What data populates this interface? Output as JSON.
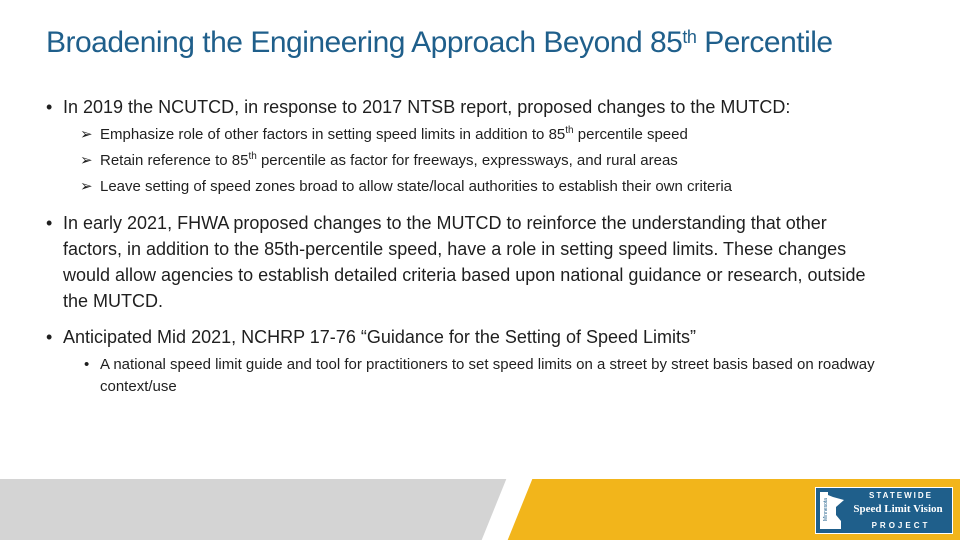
{
  "title": {
    "main": "Broadening the Engineering Approach Beyond 85",
    "sup": "th",
    "end": " Percentile"
  },
  "bullets": [
    {
      "text": "In 2019 the NCUTCD, in response to 2017 NTSB report, proposed changes to the MUTCD:",
      "subs": [
        {
          "pre": "Emphasize role of other factors in setting speed limits in addition to 85",
          "sup": "th",
          "post": " percentile speed"
        },
        {
          "pre": "Retain reference to 85",
          "sup": "th",
          "post": " percentile as factor for freeways, expressways, and rural areas"
        },
        {
          "pre": "Leave setting of speed zones broad to allow state/local authorities to establish their own criteria",
          "sup": "",
          "post": ""
        }
      ]
    },
    {
      "text": "In early 2021, FHWA proposed changes to the MUTCD to reinforce the understanding that other factors, in addition to the 85th-percentile speed, have a role in setting speed limits. These changes would allow agencies to establish detailed criteria based upon national guidance or research, outside the MUTCD."
    },
    {
      "text": "Anticipated Mid 2021, NCHRP 17-76 “Guidance for the Setting of Speed Limits”",
      "subs": [
        {
          "text": "A national speed limit guide and tool for practitioners to set speed limits on a street by street basis based on roadway context/use"
        }
      ]
    }
  ],
  "logo": {
    "top": "STATEWIDE",
    "middle": "Speed Limit Vision",
    "bottom": "PROJECT",
    "map_label": "Minnesota"
  },
  "colors": {
    "title": "#1f5f8b",
    "footer_gray": "#d4d4d4",
    "footer_gold": "#f2b51b",
    "logo_bg": "#1f5f8b"
  }
}
